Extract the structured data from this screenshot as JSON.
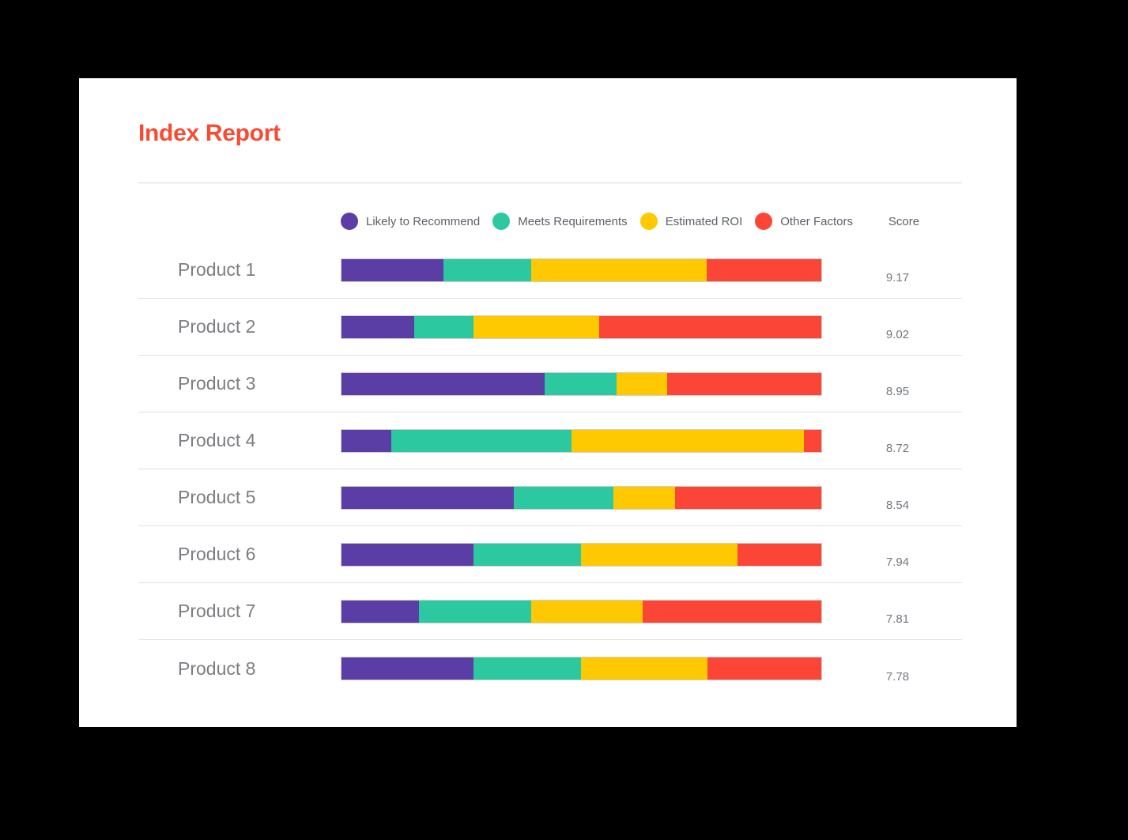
{
  "header": {
    "title": "Index Report",
    "title_color": "#f94a32"
  },
  "legend": {
    "items": [
      {
        "label": "Likely to Recommend",
        "color": "#5b3da6"
      },
      {
        "label": "Meets Requirements",
        "color": "#2cc8a0"
      },
      {
        "label": "Estimated ROI",
        "color": "#fec900"
      },
      {
        "label": "Other Factors",
        "color": "#fb4637"
      }
    ],
    "score_header": "Score"
  },
  "chart_data": {
    "type": "bar",
    "stacked": true,
    "orientation": "horizontal",
    "title": "Index Report",
    "value_unit": "percent of 100%-stacked row width (estimated from pixels)",
    "legend_position": "top",
    "categories": [
      "Product 1",
      "Product 2",
      "Product 3",
      "Product 4",
      "Product 5",
      "Product 6",
      "Product 7",
      "Product 8"
    ],
    "series": [
      {
        "name": "Likely to Recommend",
        "color": "#5b3da6",
        "values": [
          21.2,
          15.1,
          42.3,
          10.4,
          35.9,
          27.5,
          16.1,
          27.5
        ]
      },
      {
        "name": "Meets Requirements",
        "color": "#2cc8a0",
        "values": [
          18.4,
          12.4,
          15.1,
          37.6,
          20.8,
          22.5,
          23.5,
          22.5
        ]
      },
      {
        "name": "Estimated ROI",
        "color": "#fec900",
        "values": [
          36.5,
          26.2,
          10.4,
          48.3,
          12.8,
          32.6,
          23.2,
          26.2
        ]
      },
      {
        "name": "Other Factors",
        "color": "#fb4637",
        "values": [
          23.9,
          46.3,
          32.2,
          3.7,
          30.5,
          17.4,
          37.2,
          23.8
        ]
      }
    ],
    "scores": [
      "9.17",
      "9.02",
      "8.95",
      "8.72",
      "8.54",
      "7.94",
      "7.81",
      "7.78"
    ],
    "score_column_label": "Score"
  }
}
